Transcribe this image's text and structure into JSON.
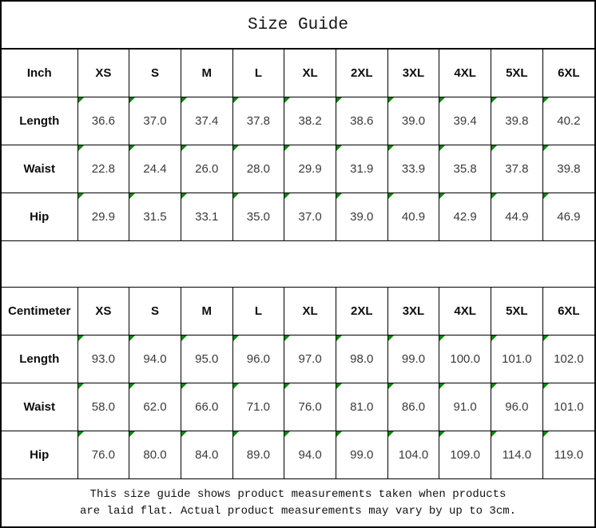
{
  "title": "Size Guide",
  "colors": {
    "border": "#000000",
    "marker_green": "#0b860b",
    "header_text": "#0d0d0d",
    "value_text": "#3a3a3a"
  },
  "tables": [
    {
      "unit": "Inch",
      "sizes": [
        "XS",
        "S",
        "M",
        "L",
        "XL",
        "2XL",
        "3XL",
        "4XL",
        "5XL",
        "6XL"
      ],
      "rows": [
        {
          "label": "Length",
          "values": [
            "36.6",
            "37.0",
            "37.4",
            "37.8",
            "38.2",
            "38.6",
            "39.0",
            "39.4",
            "39.8",
            "40.2"
          ]
        },
        {
          "label": "Waist",
          "values": [
            "22.8",
            "24.4",
            "26.0",
            "28.0",
            "29.9",
            "31.9",
            "33.9",
            "35.8",
            "37.8",
            "39.8"
          ]
        },
        {
          "label": "Hip",
          "values": [
            "29.9",
            "31.5",
            "33.1",
            "35.0",
            "37.0",
            "39.0",
            "40.9",
            "42.9",
            "44.9",
            "46.9"
          ]
        }
      ]
    },
    {
      "unit": "Centimeter",
      "sizes": [
        "XS",
        "S",
        "M",
        "L",
        "XL",
        "2XL",
        "3XL",
        "4XL",
        "5XL",
        "6XL"
      ],
      "rows": [
        {
          "label": "Length",
          "values": [
            "93.0",
            "94.0",
            "95.0",
            "96.0",
            "97.0",
            "98.0",
            "99.0",
            "100.0",
            "101.0",
            "102.0"
          ]
        },
        {
          "label": "Waist",
          "values": [
            "58.0",
            "62.0",
            "66.0",
            "71.0",
            "76.0",
            "81.0",
            "86.0",
            "91.0",
            "96.0",
            "101.0"
          ]
        },
        {
          "label": "Hip",
          "values": [
            "76.0",
            "80.0",
            "84.0",
            "89.0",
            "94.0",
            "99.0",
            "104.0",
            "109.0",
            "114.0",
            "119.0"
          ]
        }
      ]
    }
  ],
  "footer": {
    "line1": "This size guide shows product measurements taken when products",
    "line2": "are laid flat. Actual product measurements may vary by up to 3cm."
  }
}
